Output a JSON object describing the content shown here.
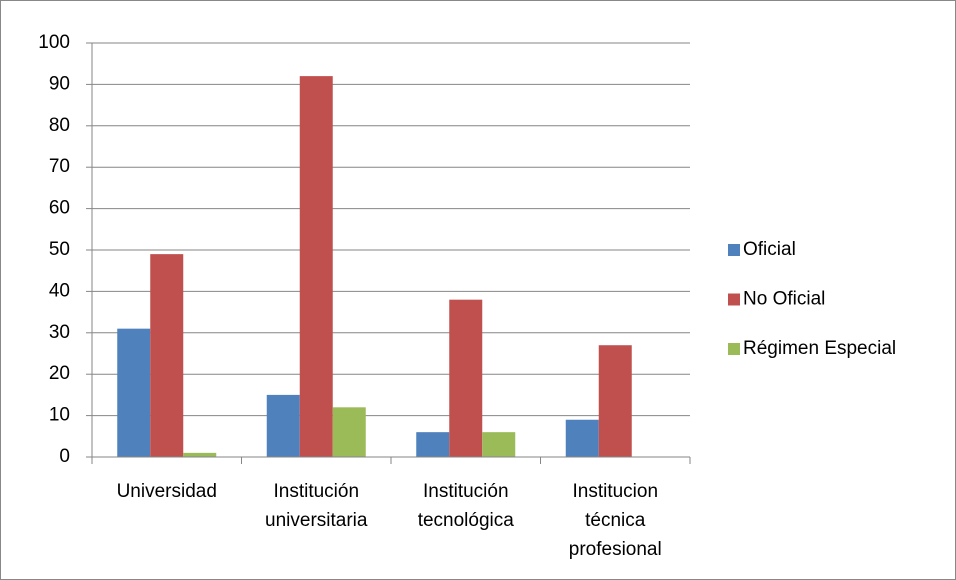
{
  "chart_data": {
    "type": "bar",
    "categories": [
      "Universidad",
      "Institución\nuniversitaria",
      "Institución\ntecnológica",
      "Institucion\ntécnica\nprofesional"
    ],
    "series": [
      {
        "name": "Oficial",
        "color": "#4f81bd",
        "values": [
          31,
          15,
          6,
          9
        ]
      },
      {
        "name": "No Oficial",
        "color": "#c0504d",
        "values": [
          49,
          92,
          38,
          27
        ]
      },
      {
        "name": "Régimen Especial",
        "color": "#9bbb59",
        "values": [
          1,
          12,
          6,
          0
        ]
      }
    ],
    "ylim": [
      0,
      100
    ],
    "yticks": [
      0,
      10,
      20,
      30,
      40,
      50,
      60,
      70,
      80,
      90,
      100
    ],
    "grid": true,
    "legend": "right"
  }
}
